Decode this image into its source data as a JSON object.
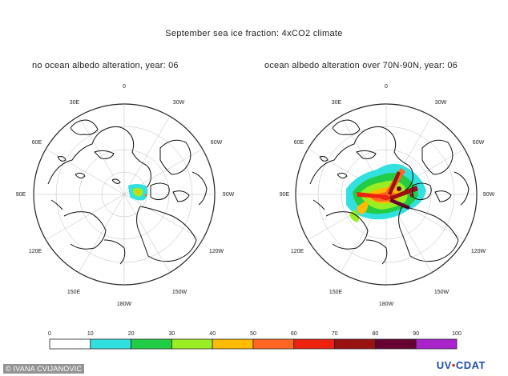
{
  "title": "September sea ice fraction: 4xCO2 climate",
  "panels": [
    {
      "title": "no ocean albedo alteration, year: 06",
      "longitude_labels": {
        "top": "0",
        "upper_left": "30E",
        "upper_right": "30W",
        "mid_left_upper": "60E",
        "mid_right_upper": "60W",
        "left": "90E",
        "right": "90W",
        "mid_left_lower": "120E",
        "mid_right_lower": "120W",
        "lower_left": "150E",
        "lower_right": "150W",
        "bottom": "180W"
      }
    },
    {
      "title": "ocean albedo alteration over 70N-90N, year: 06",
      "longitude_labels": {
        "top": "0",
        "upper_left": "30E",
        "upper_right": "30W",
        "mid_left_upper": "60E",
        "mid_right_upper": "60W",
        "left": "90E",
        "right": "90W",
        "mid_left_lower": "120E",
        "mid_right_lower": "120W",
        "lower_left": "150E",
        "lower_right": "150W",
        "bottom": "180W"
      }
    }
  ],
  "colorbar": {
    "ticks": [
      "0",
      "10",
      "20",
      "30",
      "40",
      "50",
      "60",
      "70",
      "80",
      "90",
      "100"
    ],
    "colors": [
      "#ffffff",
      "#33e0e0",
      "#22cc44",
      "#99ee22",
      "#ffbb00",
      "#ff6622",
      "#ee2211",
      "#991111",
      "#660033",
      "#aa22cc"
    ]
  },
  "credit": "© IVANA CVIJANOVIC",
  "logo": {
    "part1": "UV",
    "part2": "CDAT"
  }
}
